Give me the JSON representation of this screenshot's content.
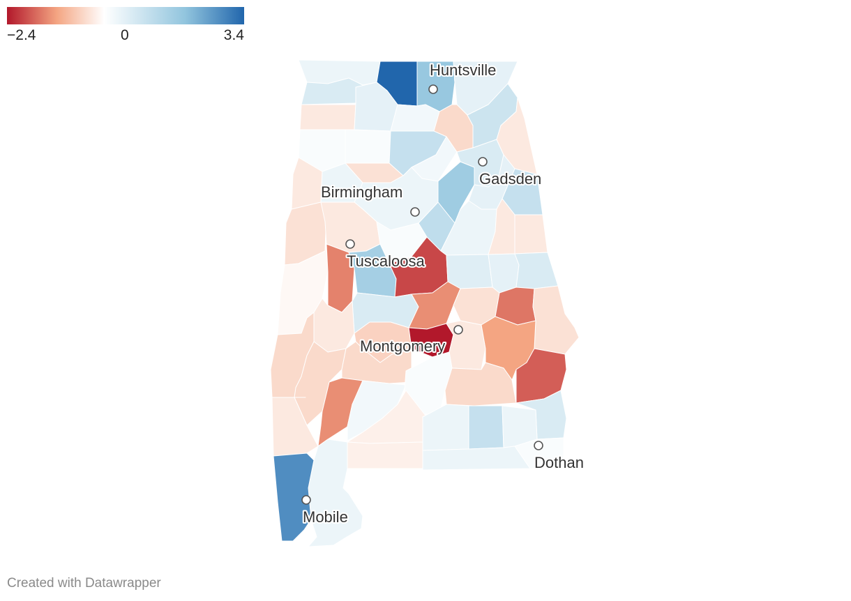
{
  "legend": {
    "min_label": "−2.4",
    "mid_label": "0",
    "max_label": "3.4",
    "min_value": -2.4,
    "max_value": 3.4,
    "colors": [
      "#b2182b",
      "#f4a582",
      "#ffffff",
      "#92c5de",
      "#2166ac"
    ]
  },
  "cities": [
    {
      "name": "Huntsville"
    },
    {
      "name": "Gadsden"
    },
    {
      "name": "Birmingham"
    },
    {
      "name": "Tuscaloosa"
    },
    {
      "name": "Montgomery"
    },
    {
      "name": "Dothan"
    },
    {
      "name": "Mobile"
    }
  ],
  "regions": [
    {
      "value": 0.3
    },
    {
      "value": 3.4
    },
    {
      "value": 1.6
    },
    {
      "value": 0.4
    },
    {
      "value": 0.6
    },
    {
      "value": -0.3
    },
    {
      "value": 0.4
    },
    {
      "value": 0.2
    },
    {
      "value": -0.5
    },
    {
      "value": 0.8
    },
    {
      "value": 0.1
    },
    {
      "value": 0.1
    },
    {
      "value": 0.9
    },
    {
      "value": 0.2
    },
    {
      "value": 0.6
    },
    {
      "value": -0.3
    },
    {
      "value": -0.3
    },
    {
      "value": 0.3
    },
    {
      "value": -0.4
    },
    {
      "value": 0.3
    },
    {
      "value": 1.5
    },
    {
      "value": 0.4
    },
    {
      "value": 0.9
    },
    {
      "value": -0.4
    },
    {
      "value": -0.3
    },
    {
      "value": 0.1
    },
    {
      "value": 1.0
    },
    {
      "value": 0.3
    },
    {
      "value": -0.3
    },
    {
      "value": -0.3
    },
    {
      "value": -0.1
    },
    {
      "value": -1.5
    },
    {
      "value": 1.4
    },
    {
      "value": -2.0
    },
    {
      "value": 0.5
    },
    {
      "value": 0.4
    },
    {
      "value": 0.6
    },
    {
      "value": 0.6
    },
    {
      "value": -1.4
    },
    {
      "value": -0.4
    },
    {
      "value": -1.6
    },
    {
      "value": -0.4
    },
    {
      "value": -0.5
    },
    {
      "value": -0.3
    },
    {
      "value": -0.6
    },
    {
      "value": -2.4
    },
    {
      "value": -0.3
    },
    {
      "value": -1.2
    },
    {
      "value": -1.8
    },
    {
      "value": -0.5
    },
    {
      "value": -0.5
    },
    {
      "value": -1.4
    },
    {
      "value": 0.2
    },
    {
      "value": 0.1
    },
    {
      "value": -0.5
    },
    {
      "value": 0.6
    },
    {
      "value": -0.3
    },
    {
      "value": -0.2
    },
    {
      "value": -0.2
    },
    {
      "value": 0.3
    },
    {
      "value": 0.9
    },
    {
      "value": 0.3
    },
    {
      "value": 0.3
    },
    {
      "value": 0.1
    },
    {
      "value": 0.3
    },
    {
      "value": 2.7
    },
    {
      "value": 0.0
    }
  ],
  "footer": {
    "credit": "Created with Datawrapper"
  }
}
